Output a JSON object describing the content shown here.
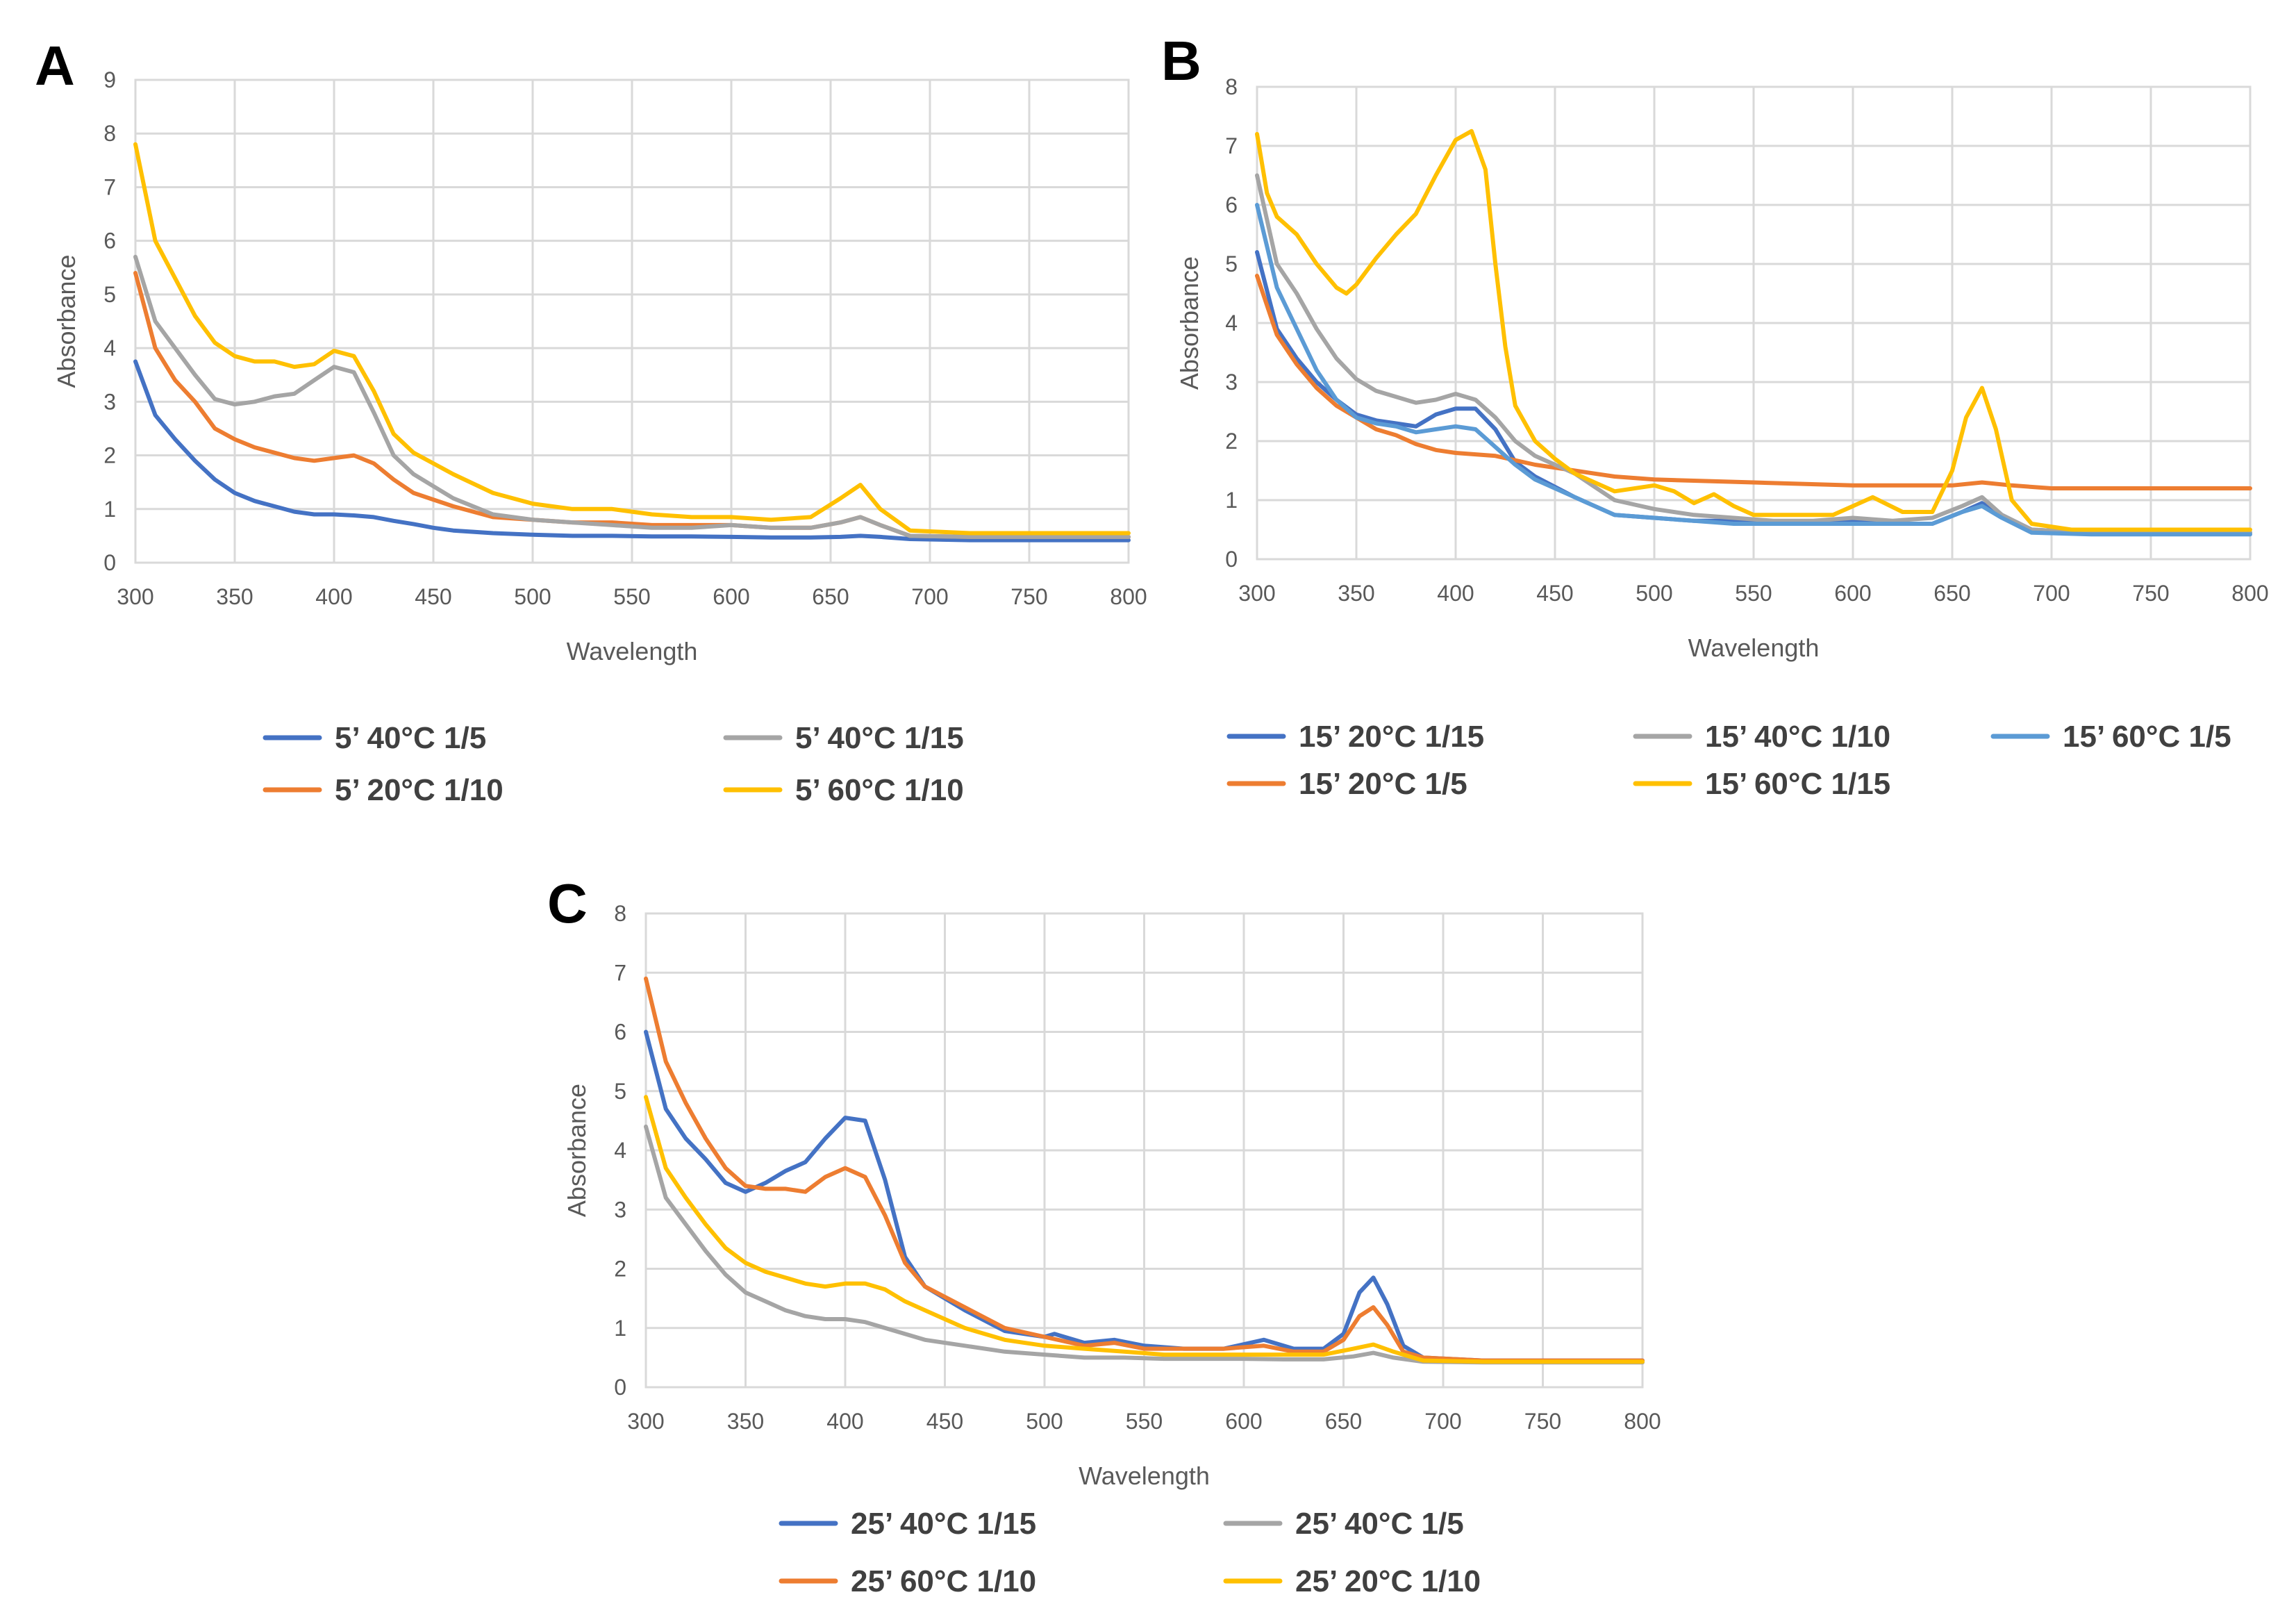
{
  "colors": {
    "blue": "#4472C4",
    "orange": "#ED7D31",
    "gray": "#A5A5A5",
    "yellow": "#FFC000",
    "lightblue": "#5B9BD5"
  },
  "chart_data": [
    {
      "panel_label": "A",
      "type": "line",
      "title": "",
      "xlabel": "Wavelength",
      "ylabel": "Absorbance",
      "xlim": [
        300,
        800
      ],
      "ylim": [
        0,
        9
      ],
      "x_ticks": [
        300,
        350,
        400,
        450,
        500,
        550,
        600,
        650,
        700,
        750,
        800
      ],
      "y_ticks": [
        0,
        1,
        2,
        3,
        4,
        5,
        6,
        7,
        8,
        9
      ],
      "grid": true,
      "legend_placement": "bottom",
      "series": [
        {
          "name": "5’ 40°C 1/5",
          "color": "blue",
          "x": [
            300,
            310,
            320,
            330,
            340,
            350,
            360,
            370,
            380,
            390,
            400,
            410,
            420,
            430,
            440,
            450,
            460,
            480,
            500,
            520,
            540,
            560,
            580,
            600,
            620,
            640,
            655,
            665,
            675,
            690,
            720,
            760,
            800
          ],
          "y": [
            3.75,
            2.75,
            2.3,
            1.9,
            1.55,
            1.3,
            1.15,
            1.05,
            0.95,
            0.9,
            0.9,
            0.88,
            0.85,
            0.78,
            0.72,
            0.65,
            0.6,
            0.55,
            0.52,
            0.5,
            0.5,
            0.49,
            0.49,
            0.48,
            0.47,
            0.47,
            0.48,
            0.5,
            0.48,
            0.44,
            0.42,
            0.42,
            0.42
          ]
        },
        {
          "name": "5’ 20°C 1/10",
          "color": "orange",
          "x": [
            300,
            310,
            320,
            330,
            340,
            350,
            360,
            370,
            380,
            390,
            400,
            410,
            420,
            430,
            440,
            460,
            480,
            500,
            520,
            540,
            560,
            580,
            600,
            620,
            640,
            655,
            665,
            675,
            690,
            720,
            760,
            800
          ],
          "y": [
            5.4,
            4.0,
            3.4,
            3.0,
            2.5,
            2.3,
            2.15,
            2.05,
            1.95,
            1.9,
            1.95,
            2.0,
            1.85,
            1.55,
            1.3,
            1.05,
            0.85,
            0.8,
            0.75,
            0.75,
            0.7,
            0.7,
            0.7,
            0.65,
            0.65,
            0.75,
            0.85,
            0.7,
            0.5,
            0.48,
            0.48,
            0.48
          ]
        },
        {
          "name": "5’ 40°C 1/15",
          "color": "gray",
          "x": [
            300,
            310,
            320,
            330,
            340,
            350,
            360,
            370,
            380,
            390,
            400,
            410,
            420,
            430,
            440,
            460,
            480,
            500,
            520,
            540,
            560,
            580,
            600,
            620,
            640,
            655,
            665,
            675,
            690,
            720,
            760,
            800
          ],
          "y": [
            5.7,
            4.5,
            4.0,
            3.5,
            3.05,
            2.95,
            3.0,
            3.1,
            3.15,
            3.4,
            3.65,
            3.55,
            2.8,
            2.0,
            1.65,
            1.2,
            0.9,
            0.8,
            0.75,
            0.7,
            0.65,
            0.65,
            0.7,
            0.65,
            0.65,
            0.75,
            0.85,
            0.7,
            0.5,
            0.48,
            0.48,
            0.48
          ]
        },
        {
          "name": "5’ 60°C 1/10",
          "color": "yellow",
          "x": [
            300,
            310,
            320,
            330,
            340,
            350,
            360,
            370,
            380,
            390,
            400,
            410,
            420,
            430,
            440,
            460,
            480,
            500,
            520,
            540,
            560,
            580,
            600,
            620,
            640,
            655,
            665,
            675,
            690,
            720,
            760,
            800
          ],
          "y": [
            7.8,
            6.0,
            5.3,
            4.6,
            4.1,
            3.85,
            3.75,
            3.75,
            3.65,
            3.7,
            3.95,
            3.85,
            3.2,
            2.4,
            2.05,
            1.65,
            1.3,
            1.1,
            1.0,
            1.0,
            0.9,
            0.85,
            0.85,
            0.8,
            0.85,
            1.2,
            1.45,
            1.0,
            0.6,
            0.55,
            0.55,
            0.55
          ]
        }
      ],
      "legend_order": [
        0,
        2,
        1,
        3
      ]
    },
    {
      "panel_label": "B",
      "type": "line",
      "title": "",
      "xlabel": "Wavelength",
      "ylabel": "Absorbance",
      "xlim": [
        300,
        800
      ],
      "ylim": [
        0,
        8
      ],
      "x_ticks": [
        300,
        350,
        400,
        450,
        500,
        550,
        600,
        650,
        700,
        750,
        800
      ],
      "y_ticks": [
        0,
        1,
        2,
        3,
        4,
        5,
        6,
        7,
        8
      ],
      "grid": true,
      "legend_placement": "bottom",
      "series": [
        {
          "name": "15’ 20°C 1/15",
          "color": "blue",
          "x": [
            300,
            310,
            320,
            330,
            340,
            350,
            360,
            370,
            380,
            390,
            400,
            410,
            420,
            430,
            440,
            460,
            480,
            500,
            520,
            540,
            560,
            580,
            600,
            620,
            640,
            655,
            665,
            675,
            690,
            720,
            760,
            800
          ],
          "y": [
            5.2,
            3.9,
            3.4,
            3.0,
            2.7,
            2.45,
            2.35,
            2.3,
            2.25,
            2.45,
            2.55,
            2.55,
            2.2,
            1.65,
            1.4,
            1.05,
            0.75,
            0.7,
            0.65,
            0.65,
            0.6,
            0.6,
            0.65,
            0.6,
            0.6,
            0.8,
            0.95,
            0.75,
            0.5,
            0.45,
            0.45,
            0.45
          ]
        },
        {
          "name": "15’ 20°C 1/5",
          "color": "orange",
          "x": [
            300,
            310,
            320,
            330,
            340,
            350,
            360,
            370,
            380,
            390,
            400,
            420,
            440,
            460,
            480,
            500,
            550,
            600,
            650,
            665,
            680,
            700,
            750,
            800
          ],
          "y": [
            4.8,
            3.8,
            3.3,
            2.9,
            2.6,
            2.4,
            2.2,
            2.1,
            1.95,
            1.85,
            1.8,
            1.75,
            1.6,
            1.5,
            1.4,
            1.35,
            1.3,
            1.25,
            1.25,
            1.3,
            1.25,
            1.2,
            1.2,
            1.2
          ]
        },
        {
          "name": "15’ 40°C 1/10",
          "color": "gray",
          "x": [
            300,
            310,
            320,
            330,
            340,
            350,
            360,
            370,
            380,
            390,
            400,
            410,
            420,
            430,
            440,
            460,
            480,
            500,
            520,
            540,
            560,
            580,
            600,
            620,
            640,
            655,
            665,
            675,
            690,
            720,
            760,
            800
          ],
          "y": [
            6.5,
            5.0,
            4.5,
            3.9,
            3.4,
            3.05,
            2.85,
            2.75,
            2.65,
            2.7,
            2.8,
            2.7,
            2.4,
            2.0,
            1.75,
            1.45,
            1.0,
            0.85,
            0.75,
            0.7,
            0.65,
            0.65,
            0.7,
            0.65,
            0.7,
            0.9,
            1.05,
            0.75,
            0.5,
            0.45,
            0.45,
            0.45
          ]
        },
        {
          "name": "15’ 60°C 1/15",
          "color": "yellow",
          "x": [
            300,
            305,
            310,
            320,
            330,
            340,
            345,
            350,
            360,
            370,
            380,
            390,
            400,
            408,
            415,
            420,
            425,
            430,
            440,
            450,
            460,
            480,
            500,
            510,
            520,
            530,
            540,
            550,
            570,
            590,
            610,
            625,
            640,
            650,
            657,
            665,
            672,
            680,
            690,
            710,
            760,
            800
          ],
          "y": [
            7.2,
            6.2,
            5.8,
            5.5,
            5.0,
            4.6,
            4.5,
            4.65,
            5.1,
            5.5,
            5.85,
            6.5,
            7.1,
            7.25,
            6.6,
            5.0,
            3.6,
            2.6,
            2.0,
            1.7,
            1.45,
            1.15,
            1.25,
            1.15,
            0.95,
            1.1,
            0.9,
            0.75,
            0.75,
            0.75,
            1.05,
            0.8,
            0.8,
            1.5,
            2.4,
            2.9,
            2.2,
            1.0,
            0.6,
            0.5,
            0.5,
            0.5
          ]
        },
        {
          "name": "15’ 60°C 1/5",
          "color": "lightblue",
          "x": [
            300,
            310,
            320,
            330,
            340,
            350,
            360,
            370,
            380,
            390,
            400,
            410,
            420,
            430,
            440,
            460,
            480,
            500,
            520,
            540,
            560,
            580,
            600,
            620,
            640,
            655,
            665,
            675,
            690,
            720,
            760,
            800
          ],
          "y": [
            6.0,
            4.6,
            3.9,
            3.2,
            2.7,
            2.4,
            2.3,
            2.25,
            2.15,
            2.2,
            2.25,
            2.2,
            1.9,
            1.6,
            1.35,
            1.05,
            0.75,
            0.7,
            0.65,
            0.6,
            0.6,
            0.6,
            0.6,
            0.6,
            0.6,
            0.8,
            0.9,
            0.7,
            0.45,
            0.42,
            0.42,
            0.42
          ]
        }
      ],
      "legend_order": [
        0,
        2,
        4,
        1,
        3
      ]
    },
    {
      "panel_label": "C",
      "type": "line",
      "title": "",
      "xlabel": "Wavelength",
      "ylabel": "Absorbance",
      "xlim": [
        300,
        800
      ],
      "ylim": [
        0,
        8
      ],
      "x_ticks": [
        300,
        350,
        400,
        450,
        500,
        550,
        600,
        650,
        700,
        750,
        800
      ],
      "y_ticks": [
        0,
        1,
        2,
        3,
        4,
        5,
        6,
        7,
        8
      ],
      "grid": true,
      "legend_placement": "bottom",
      "series": [
        {
          "name": "25’ 40°C 1/15",
          "color": "blue",
          "x": [
            300,
            310,
            320,
            330,
            340,
            350,
            360,
            370,
            380,
            390,
            400,
            410,
            420,
            430,
            440,
            460,
            480,
            500,
            505,
            520,
            535,
            550,
            570,
            590,
            610,
            625,
            640,
            650,
            658,
            665,
            672,
            680,
            690,
            720,
            760,
            800
          ],
          "y": [
            6.0,
            4.7,
            4.2,
            3.85,
            3.45,
            3.3,
            3.45,
            3.65,
            3.8,
            4.2,
            4.55,
            4.5,
            3.5,
            2.2,
            1.7,
            1.3,
            0.95,
            0.85,
            0.9,
            0.75,
            0.8,
            0.7,
            0.65,
            0.65,
            0.8,
            0.65,
            0.65,
            0.9,
            1.6,
            1.85,
            1.4,
            0.7,
            0.5,
            0.45,
            0.45,
            0.45
          ]
        },
        {
          "name": "25’ 60°C 1/10",
          "color": "orange",
          "x": [
            300,
            310,
            320,
            330,
            340,
            350,
            360,
            370,
            380,
            390,
            400,
            410,
            420,
            430,
            440,
            460,
            480,
            500,
            520,
            535,
            550,
            570,
            590,
            610,
            625,
            640,
            650,
            658,
            665,
            672,
            680,
            690,
            720,
            760,
            800
          ],
          "y": [
            6.9,
            5.5,
            4.8,
            4.2,
            3.7,
            3.4,
            3.35,
            3.35,
            3.3,
            3.55,
            3.7,
            3.55,
            2.9,
            2.1,
            1.7,
            1.35,
            1.0,
            0.85,
            0.7,
            0.75,
            0.65,
            0.65,
            0.65,
            0.7,
            0.6,
            0.6,
            0.8,
            1.2,
            1.35,
            1.05,
            0.6,
            0.5,
            0.45,
            0.45,
            0.45
          ]
        },
        {
          "name": "25’ 40°C 1/5",
          "color": "gray",
          "x": [
            300,
            310,
            320,
            330,
            340,
            350,
            360,
            370,
            380,
            390,
            400,
            410,
            420,
            430,
            440,
            460,
            480,
            500,
            520,
            540,
            560,
            580,
            600,
            620,
            640,
            655,
            665,
            675,
            690,
            720,
            760,
            800
          ],
          "y": [
            4.4,
            3.2,
            2.75,
            2.3,
            1.9,
            1.6,
            1.45,
            1.3,
            1.2,
            1.15,
            1.15,
            1.1,
            1.0,
            0.9,
            0.8,
            0.7,
            0.6,
            0.55,
            0.5,
            0.5,
            0.48,
            0.48,
            0.48,
            0.47,
            0.47,
            0.52,
            0.58,
            0.5,
            0.43,
            0.42,
            0.42,
            0.42
          ]
        },
        {
          "name": "25’ 20°C 1/10",
          "color": "yellow",
          "x": [
            300,
            310,
            320,
            330,
            340,
            350,
            360,
            370,
            380,
            390,
            400,
            410,
            420,
            430,
            440,
            460,
            480,
            500,
            520,
            540,
            560,
            580,
            600,
            620,
            640,
            655,
            665,
            675,
            690,
            720,
            760,
            800
          ],
          "y": [
            4.9,
            3.7,
            3.2,
            2.75,
            2.35,
            2.1,
            1.95,
            1.85,
            1.75,
            1.7,
            1.75,
            1.75,
            1.65,
            1.45,
            1.3,
            1.0,
            0.8,
            0.7,
            0.65,
            0.6,
            0.55,
            0.55,
            0.55,
            0.55,
            0.55,
            0.65,
            0.72,
            0.6,
            0.45,
            0.43,
            0.43,
            0.43
          ]
        }
      ],
      "legend_order": [
        0,
        2,
        1,
        3
      ]
    }
  ]
}
